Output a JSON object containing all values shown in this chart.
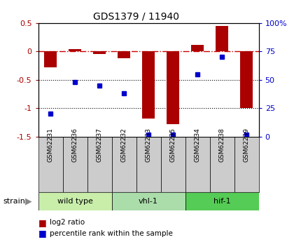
{
  "title": "GDS1379 / 11940",
  "samples": [
    "GSM62231",
    "GSM62236",
    "GSM62237",
    "GSM62232",
    "GSM62233",
    "GSM62235",
    "GSM62234",
    "GSM62238",
    "GSM62239"
  ],
  "log2_ratio": [
    -0.28,
    0.04,
    -0.04,
    -0.12,
    -1.18,
    -1.28,
    0.12,
    0.45,
    -1.0
  ],
  "pct_rank": [
    20,
    48,
    45,
    38,
    2,
    2,
    55,
    70,
    2
  ],
  "ylim_left": [
    -1.5,
    0.5
  ],
  "ylim_right": [
    0,
    100
  ],
  "bar_color": "#aa0000",
  "dot_color": "#0000cc",
  "dashed_line_color": "#cc0000",
  "groups": [
    {
      "label": "wild type",
      "start": 0,
      "end": 3,
      "color": "#c8eeaa"
    },
    {
      "label": "vhl-1",
      "start": 3,
      "end": 6,
      "color": "#aaddaa"
    },
    {
      "label": "hif-1",
      "start": 6,
      "end": 9,
      "color": "#55cc55"
    }
  ],
  "legend_items": [
    {
      "label": "log2 ratio",
      "color": "#aa0000"
    },
    {
      "label": "percentile rank within the sample",
      "color": "#0000cc"
    }
  ],
  "left_yticks": [
    0.5,
    0.0,
    -0.5,
    -1.0,
    -1.5
  ],
  "right_yticks": [
    100,
    75,
    50,
    25,
    0
  ],
  "right_yticklabels": [
    "100%",
    "75",
    "50",
    "25",
    "0"
  ]
}
